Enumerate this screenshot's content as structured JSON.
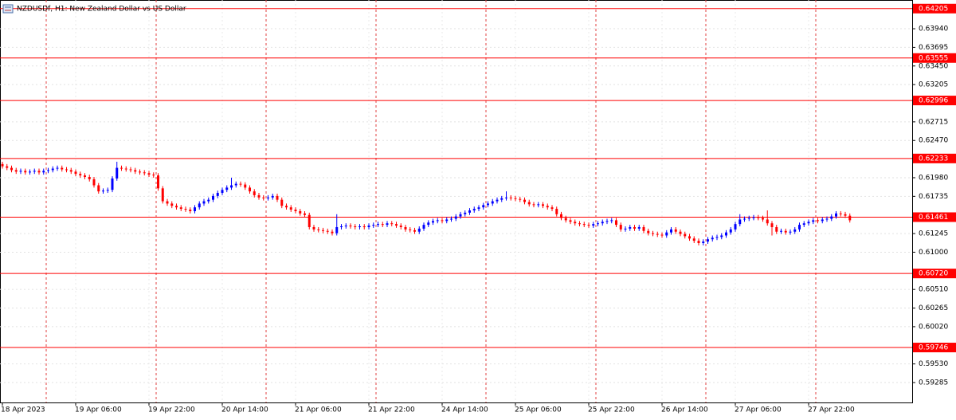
{
  "chart_data": {
    "type": "candlestick",
    "title": "NZDUSDf, H1:  New Zealand Dollar vs US Dollar",
    "categories": [
      "18 Apr 2023",
      null,
      null,
      null,
      null,
      null,
      null,
      null,
      null,
      null,
      null,
      null,
      null,
      null,
      null,
      null,
      "19 Apr 06:00",
      null,
      null,
      null,
      null,
      null,
      null,
      null,
      null,
      null,
      null,
      null,
      null,
      null,
      null,
      null,
      "19 Apr 22:00",
      null,
      null,
      null,
      null,
      null,
      null,
      null,
      null,
      null,
      null,
      null,
      null,
      null,
      null,
      null,
      "20 Apr 14:00",
      null,
      null,
      null,
      null,
      null,
      null,
      null,
      null,
      null,
      null,
      null,
      null,
      null,
      null,
      null,
      "21 Apr 06:00",
      null,
      null,
      null,
      null,
      null,
      null,
      null,
      null,
      null,
      null,
      null,
      null,
      null,
      null,
      null,
      "21 Apr 22:00",
      null,
      null,
      null,
      null,
      null,
      null,
      null,
      null,
      null,
      null,
      null,
      null,
      null,
      null,
      null,
      "24 Apr 14:00",
      null,
      null,
      null,
      null,
      null,
      null,
      null,
      null,
      null,
      null,
      null,
      null,
      null,
      null,
      null,
      "25 Apr 06:00",
      null,
      null,
      null,
      null,
      null,
      null,
      null,
      null,
      null,
      null,
      null,
      null,
      null,
      null,
      null,
      "25 Apr 22:00",
      null,
      null,
      null,
      null,
      null,
      null,
      null,
      null,
      null,
      null,
      null,
      null,
      null,
      null,
      null,
      "26 Apr 14:00",
      null,
      null,
      null,
      null,
      null,
      null,
      null,
      null,
      null,
      null,
      null,
      null,
      null,
      null,
      null,
      "27 Apr 06:00",
      null,
      null,
      null,
      null,
      null,
      null,
      null,
      null,
      null,
      null,
      null,
      null,
      null,
      null,
      null,
      "27 Apr 22:00",
      null,
      null,
      null,
      null,
      null,
      null,
      null,
      null,
      null
    ],
    "open": [
      0.6216,
      0.6213,
      0.6211,
      0.6208,
      0.6206,
      0.6207,
      0.6205,
      0.6206,
      0.6207,
      0.6205,
      0.6207,
      0.6208,
      0.621,
      0.6211,
      0.6209,
      0.6208,
      0.6206,
      0.6203,
      0.6201,
      0.6199,
      0.6196,
      0.6188,
      0.618,
      0.6181,
      0.6182,
      0.6197,
      0.6211,
      0.621,
      0.6209,
      0.6208,
      0.6206,
      0.6205,
      0.6204,
      0.6202,
      0.6201,
      0.6184,
      0.6167,
      0.6164,
      0.6161,
      0.6159,
      0.6157,
      0.6156,
      0.6154,
      0.6159,
      0.6164,
      0.6167,
      0.6169,
      0.6174,
      0.6178,
      0.6182,
      0.6185,
      0.6188,
      0.619,
      0.6189,
      0.6185,
      0.618,
      0.6175,
      0.6172,
      0.6171,
      0.6172,
      0.6174,
      0.6169,
      0.6161,
      0.6159,
      0.6156,
      0.6154,
      0.6151,
      0.6149,
      0.6133,
      0.613,
      0.6129,
      0.6128,
      0.6127,
      0.6125,
      0.6133,
      0.6134,
      0.6135,
      0.6134,
      0.6133,
      0.6134,
      0.6133,
      0.6135,
      0.6136,
      0.6137,
      0.6136,
      0.6138,
      0.6137,
      0.6135,
      0.6133,
      0.613,
      0.6129,
      0.6127,
      0.6131,
      0.6136,
      0.6139,
      0.6141,
      0.6142,
      0.6141,
      0.6143,
      0.6144,
      0.6147,
      0.615,
      0.6152,
      0.6155,
      0.6157,
      0.6159,
      0.6162,
      0.6164,
      0.6167,
      0.6169,
      0.6171,
      0.6172,
      0.6171,
      0.617,
      0.6169,
      0.6166,
      0.6163,
      0.6162,
      0.6163,
      0.6161,
      0.6159,
      0.6157,
      0.615,
      0.6145,
      0.6142,
      0.614,
      0.6138,
      0.6137,
      0.6136,
      0.6135,
      0.6137,
      0.6138,
      0.614,
      0.6141,
      0.6142,
      0.6136,
      0.613,
      0.6131,
      0.6133,
      0.6131,
      0.6133,
      0.6128,
      0.6125,
      0.6124,
      0.6123,
      0.6122,
      0.6126,
      0.613,
      0.6127,
      0.6124,
      0.6121,
      0.6118,
      0.6115,
      0.6112,
      0.6114,
      0.6117,
      0.6119,
      0.612,
      0.6122,
      0.6126,
      0.613,
      0.6137,
      0.6143,
      0.6144,
      0.6145,
      0.6146,
      0.6145,
      0.6143,
      0.6138,
      0.6133,
      0.6127,
      0.6128,
      0.6126,
      0.6127,
      0.613,
      0.6136,
      0.6138,
      0.614,
      0.6142,
      0.6141,
      0.6143,
      0.6144,
      0.6147,
      0.6151,
      0.615,
      0.6148
    ],
    "high": [
      0.6219,
      0.6216,
      0.6214,
      0.6211,
      0.621,
      0.621,
      0.6209,
      0.621,
      0.621,
      0.621,
      0.6211,
      0.6213,
      0.6214,
      0.6214,
      0.6212,
      0.6211,
      0.6209,
      0.6206,
      0.6204,
      0.6202,
      0.6199,
      0.6191,
      0.6184,
      0.6185,
      0.62,
      0.6219,
      0.6214,
      0.6213,
      0.6212,
      0.6211,
      0.6209,
      0.6208,
      0.6207,
      0.6205,
      0.6204,
      0.6187,
      0.617,
      0.6167,
      0.6164,
      0.6162,
      0.616,
      0.6159,
      0.6162,
      0.6167,
      0.617,
      0.6172,
      0.6177,
      0.6181,
      0.6185,
      0.6188,
      0.6198,
      0.6193,
      0.6193,
      0.6192,
      0.6188,
      0.6183,
      0.6178,
      0.6175,
      0.6175,
      0.6177,
      0.6177,
      0.6172,
      0.6164,
      0.6162,
      0.6159,
      0.6157,
      0.6154,
      0.6152,
      0.6136,
      0.6133,
      0.6132,
      0.6131,
      0.613,
      0.615,
      0.6137,
      0.6138,
      0.6138,
      0.6137,
      0.6137,
      0.6137,
      0.6138,
      0.6139,
      0.614,
      0.614,
      0.6141,
      0.6141,
      0.614,
      0.6138,
      0.6136,
      0.6133,
      0.6132,
      0.6134,
      0.6139,
      0.6142,
      0.6144,
      0.6145,
      0.6145,
      0.6146,
      0.6147,
      0.615,
      0.6153,
      0.6155,
      0.6158,
      0.616,
      0.6162,
      0.6165,
      0.6167,
      0.617,
      0.6172,
      0.6174,
      0.618,
      0.6175,
      0.6174,
      0.6173,
      0.6172,
      0.6169,
      0.6166,
      0.6166,
      0.6166,
      0.6164,
      0.6162,
      0.616,
      0.6153,
      0.6148,
      0.6145,
      0.6143,
      0.6141,
      0.614,
      0.6139,
      0.614,
      0.6141,
      0.6143,
      0.6144,
      0.6145,
      0.6145,
      0.6139,
      0.6134,
      0.6136,
      0.6136,
      0.6136,
      0.6136,
      0.6131,
      0.6128,
      0.6127,
      0.6126,
      0.6129,
      0.6133,
      0.6133,
      0.613,
      0.6127,
      0.6124,
      0.6121,
      0.6118,
      0.6117,
      0.612,
      0.6122,
      0.6123,
      0.6125,
      0.6129,
      0.6133,
      0.614,
      0.615,
      0.6147,
      0.6148,
      0.6149,
      0.6149,
      0.6148,
      0.6155,
      0.6141,
      0.6136,
      0.6131,
      0.6131,
      0.613,
      0.6133,
      0.6139,
      0.6141,
      0.6143,
      0.6145,
      0.6145,
      0.6146,
      0.6147,
      0.615,
      0.6154,
      0.6154,
      0.6153,
      0.6151
    ],
    "low": [
      0.621,
      0.6208,
      0.6205,
      0.6203,
      0.6203,
      0.6202,
      0.6202,
      0.6203,
      0.6202,
      0.6202,
      0.6204,
      0.6205,
      0.6207,
      0.6206,
      0.6205,
      0.6203,
      0.62,
      0.6198,
      0.6196,
      0.6193,
      0.6185,
      0.6177,
      0.6177,
      0.6178,
      0.6179,
      0.6194,
      0.6207,
      0.6206,
      0.6205,
      0.6203,
      0.6202,
      0.6201,
      0.6199,
      0.6198,
      0.6181,
      0.6164,
      0.6161,
      0.6158,
      0.6156,
      0.6154,
      0.6153,
      0.6151,
      0.6151,
      0.6156,
      0.6161,
      0.6164,
      0.6166,
      0.6171,
      0.6175,
      0.6179,
      0.6182,
      0.6185,
      0.6186,
      0.6182,
      0.6177,
      0.6172,
      0.6169,
      0.6168,
      0.6168,
      0.6169,
      0.6166,
      0.6158,
      0.6156,
      0.6153,
      0.6151,
      0.6148,
      0.6146,
      0.613,
      0.6127,
      0.6126,
      0.6125,
      0.6124,
      0.6122,
      0.6122,
      0.613,
      0.6131,
      0.6131,
      0.613,
      0.613,
      0.613,
      0.613,
      0.6132,
      0.6133,
      0.6133,
      0.6133,
      0.6134,
      0.6132,
      0.613,
      0.6127,
      0.6126,
      0.6124,
      0.6124,
      0.6128,
      0.6133,
      0.6136,
      0.6138,
      0.6138,
      0.6138,
      0.614,
      0.6141,
      0.6144,
      0.6147,
      0.6149,
      0.6152,
      0.6154,
      0.6156,
      0.6159,
      0.6161,
      0.6164,
      0.6166,
      0.6168,
      0.6168,
      0.6167,
      0.6166,
      0.6163,
      0.616,
      0.6159,
      0.6159,
      0.6158,
      0.6156,
      0.6154,
      0.6147,
      0.6142,
      0.6139,
      0.6137,
      0.6135,
      0.6134,
      0.6133,
      0.6132,
      0.6132,
      0.6134,
      0.6135,
      0.6137,
      0.6138,
      0.6133,
      0.6127,
      0.6127,
      0.6128,
      0.6128,
      0.6128,
      0.6125,
      0.6122,
      0.6121,
      0.612,
      0.6119,
      0.6119,
      0.6123,
      0.6124,
      0.6121,
      0.6118,
      0.6115,
      0.6112,
      0.6109,
      0.6109,
      0.6111,
      0.6114,
      0.6116,
      0.6117,
      0.6119,
      0.6123,
      0.6127,
      0.6134,
      0.614,
      0.6141,
      0.6142,
      0.6142,
      0.614,
      0.6135,
      0.6122,
      0.6124,
      0.6124,
      0.6123,
      0.6123,
      0.6124,
      0.6127,
      0.6133,
      0.6135,
      0.6137,
      0.6138,
      0.6138,
      0.614,
      0.6141,
      0.6144,
      0.6147,
      0.6145,
      0.6139
    ],
    "close": [
      0.6213,
      0.6211,
      0.6208,
      0.6206,
      0.6207,
      0.6205,
      0.6206,
      0.6207,
      0.6205,
      0.6207,
      0.6208,
      0.621,
      0.6211,
      0.6209,
      0.6208,
      0.6206,
      0.6203,
      0.6201,
      0.6199,
      0.6196,
      0.6188,
      0.618,
      0.6181,
      0.6182,
      0.6197,
      0.6211,
      0.621,
      0.6209,
      0.6208,
      0.6206,
      0.6205,
      0.6204,
      0.6202,
      0.6201,
      0.6184,
      0.6167,
      0.6164,
      0.6161,
      0.6159,
      0.6157,
      0.6156,
      0.6154,
      0.6159,
      0.6164,
      0.6167,
      0.6169,
      0.6174,
      0.6178,
      0.6182,
      0.6185,
      0.6188,
      0.619,
      0.6189,
      0.6185,
      0.618,
      0.6175,
      0.6172,
      0.6171,
      0.6172,
      0.6174,
      0.6169,
      0.6161,
      0.6159,
      0.6156,
      0.6154,
      0.6151,
      0.6149,
      0.6133,
      0.613,
      0.6129,
      0.6128,
      0.6127,
      0.6125,
      0.6133,
      0.6134,
      0.6135,
      0.6134,
      0.6133,
      0.6134,
      0.6133,
      0.6135,
      0.6136,
      0.6137,
      0.6136,
      0.6138,
      0.6137,
      0.6135,
      0.6133,
      0.613,
      0.6129,
      0.6127,
      0.6131,
      0.6136,
      0.6139,
      0.6141,
      0.6142,
      0.6141,
      0.6143,
      0.6144,
      0.6147,
      0.615,
      0.6152,
      0.6155,
      0.6157,
      0.6159,
      0.6162,
      0.6164,
      0.6167,
      0.6169,
      0.6171,
      0.6172,
      0.6171,
      0.617,
      0.6169,
      0.6166,
      0.6163,
      0.6162,
      0.6163,
      0.6161,
      0.6159,
      0.6157,
      0.615,
      0.6145,
      0.6142,
      0.614,
      0.6138,
      0.6137,
      0.6136,
      0.6135,
      0.6137,
      0.6138,
      0.614,
      0.6141,
      0.6142,
      0.6136,
      0.613,
      0.6131,
      0.6133,
      0.6131,
      0.6133,
      0.6128,
      0.6125,
      0.6124,
      0.6123,
      0.6122,
      0.6126,
      0.613,
      0.6127,
      0.6124,
      0.6121,
      0.6118,
      0.6115,
      0.6112,
      0.6114,
      0.6117,
      0.6119,
      0.612,
      0.6122,
      0.6126,
      0.613,
      0.6137,
      0.6143,
      0.6144,
      0.6145,
      0.6146,
      0.6145,
      0.6143,
      0.6138,
      0.6133,
      0.6127,
      0.6128,
      0.6126,
      0.6127,
      0.613,
      0.6136,
      0.6138,
      0.614,
      0.6142,
      0.6141,
      0.6143,
      0.6144,
      0.6147,
      0.6151,
      0.615,
      0.6148,
      0.6142
    ],
    "up_color": "#0000ff",
    "down_color": "#ff0000",
    "ylim": [
      0.59023,
      0.64318
    ],
    "yticks": [
      {
        "value": 0.6394,
        "label": "0.63940"
      },
      {
        "value": 0.63695,
        "label": "0.63695"
      },
      {
        "value": 0.6345,
        "label": "0.63450"
      },
      {
        "value": 0.63205,
        "label": "0.63205"
      },
      {
        "value": 0.62715,
        "label": "0.62715"
      },
      {
        "value": 0.6247,
        "label": "0.62470"
      },
      {
        "value": 0.6198,
        "label": "0.61980"
      },
      {
        "value": 0.61735,
        "label": "0.61735"
      },
      {
        "value": 0.61245,
        "label": "0.61245"
      },
      {
        "value": 0.61,
        "label": "0.61000"
      },
      {
        "value": 0.6051,
        "label": "0.60510"
      },
      {
        "value": 0.60265,
        "label": "0.60265"
      },
      {
        "value": 0.6002,
        "label": "0.60020"
      },
      {
        "value": 0.5953,
        "label": "0.59530"
      },
      {
        "value": 0.59285,
        "label": "0.59285"
      }
    ],
    "levels": [
      {
        "value": 0.64205,
        "label": "0.64205"
      },
      {
        "value": 0.63555,
        "label": "0.63555"
      },
      {
        "value": 0.62996,
        "label": "0.62996"
      },
      {
        "value": 0.62233,
        "label": "0.62233"
      },
      {
        "value": 0.61461,
        "label": "0.61461"
      },
      {
        "value": 0.6072,
        "label": "0.60720"
      },
      {
        "value": 0.59746,
        "label": "0.59746"
      }
    ],
    "level_color": "#ff0000",
    "grid": true
  }
}
